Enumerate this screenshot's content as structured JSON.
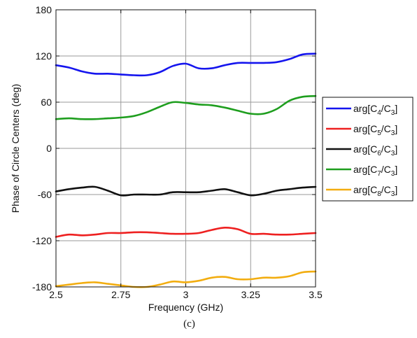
{
  "chart_data": {
    "type": "line",
    "xlabel": "Frequency (GHz)",
    "ylabel": "Phase of Circle Centers (deg)",
    "caption": "(c)",
    "xlim": [
      2.5,
      3.5
    ],
    "ylim": [
      -180,
      180
    ],
    "xticks": [
      2.5,
      2.75,
      3,
      3.25,
      3.5
    ],
    "xtick_labels": [
      "2.5",
      "2.75",
      "3",
      "3.25",
      "3.5"
    ],
    "yticks": [
      -180,
      -120,
      -60,
      0,
      60,
      120,
      180
    ],
    "ytick_labels": [
      "-180",
      "-120",
      "-60",
      "0",
      "60",
      "120",
      "180"
    ],
    "grid": true,
    "legend_position": "right",
    "series": [
      {
        "name": "arg[C4/C3]",
        "legend": {
          "prefix": "arg[C",
          "sub1": "4",
          "mid": "/C",
          "sub2": "3",
          "suffix": "]"
        },
        "color": "#1515ee",
        "x": [
          2.5,
          2.55,
          2.6,
          2.65,
          2.7,
          2.75,
          2.8,
          2.85,
          2.9,
          2.95,
          3.0,
          3.05,
          3.1,
          3.15,
          3.2,
          3.25,
          3.3,
          3.35,
          3.4,
          3.45,
          3.5
        ],
        "y": [
          108,
          105,
          100,
          97,
          97,
          96,
          95,
          95,
          99,
          107,
          110,
          104,
          104,
          108,
          111,
          111,
          111,
          112,
          116,
          122,
          123
        ]
      },
      {
        "name": "arg[C5/C3]",
        "legend": {
          "prefix": "arg[C",
          "sub1": "5",
          "mid": "/C",
          "sub2": "3",
          "suffix": "]"
        },
        "color": "#ee2020",
        "x": [
          2.5,
          2.55,
          2.6,
          2.65,
          2.7,
          2.75,
          2.8,
          2.85,
          2.9,
          2.95,
          3.0,
          3.05,
          3.1,
          3.15,
          3.2,
          3.25,
          3.3,
          3.35,
          3.4,
          3.45,
          3.5
        ],
        "y": [
          -115,
          -112,
          -113,
          -112,
          -110,
          -110,
          -109,
          -109,
          -110,
          -111,
          -111,
          -110,
          -106,
          -103,
          -105,
          -111,
          -111,
          -112,
          -112,
          -111,
          -110
        ]
      },
      {
        "name": "arg[C6/C3]",
        "legend": {
          "prefix": "arg[C",
          "sub1": "6",
          "mid": "/C",
          "sub2": "3",
          "suffix": "]"
        },
        "color": "#111111",
        "x": [
          2.5,
          2.55,
          2.6,
          2.65,
          2.7,
          2.75,
          2.8,
          2.85,
          2.9,
          2.95,
          3.0,
          3.05,
          3.1,
          3.15,
          3.2,
          3.25,
          3.3,
          3.35,
          3.4,
          3.45,
          3.5
        ],
        "y": [
          -56,
          -53,
          -51,
          -50,
          -55,
          -61,
          -60,
          -60,
          -60,
          -57,
          -57,
          -57,
          -55,
          -53,
          -57,
          -61,
          -59,
          -55,
          -53,
          -51,
          -50
        ]
      },
      {
        "name": "arg[C7/C3]",
        "legend": {
          "prefix": "arg[C",
          "sub1": "7",
          "mid": "/C",
          "sub2": "3",
          "suffix": "]"
        },
        "color": "#1e9e1e",
        "x": [
          2.5,
          2.55,
          2.6,
          2.65,
          2.7,
          2.75,
          2.8,
          2.85,
          2.9,
          2.95,
          3.0,
          3.05,
          3.1,
          3.15,
          3.2,
          3.25,
          3.3,
          3.35,
          3.4,
          3.45,
          3.5
        ],
        "y": [
          38,
          39,
          38,
          38,
          39,
          40,
          42,
          47,
          54,
          60,
          59,
          57,
          56,
          53,
          49,
          45,
          45,
          51,
          62,
          67,
          68
        ]
      },
      {
        "name": "arg[C8/C3]",
        "legend": {
          "prefix": "arg[C",
          "sub1": "8",
          "mid": "/C",
          "sub2": "3",
          "suffix": "]"
        },
        "color": "#f2ad10",
        "x": [
          2.5,
          2.55,
          2.6,
          2.65,
          2.7,
          2.75,
          2.8,
          2.85,
          2.9,
          2.95,
          3.0,
          3.05,
          3.1,
          3.15,
          3.2,
          3.25,
          3.3,
          3.35,
          3.4,
          3.45,
          3.5
        ],
        "y": [
          -179,
          -177,
          -175,
          -174,
          -176,
          -178,
          -180,
          -180,
          -177,
          -173,
          -174,
          -172,
          -168,
          -167,
          -170,
          -170,
          -168,
          -168,
          -166,
          -161,
          -160
        ]
      }
    ]
  }
}
